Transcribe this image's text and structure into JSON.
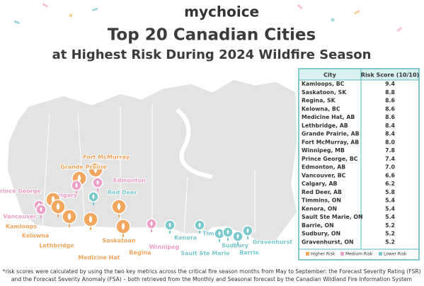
{
  "brand": {
    "my": "my",
    "choice": "choice"
  },
  "header": {
    "title": "Top 20 Canadian Cities",
    "subtitle": "at Highest Risk During 2024 Wildfire Season"
  },
  "table": {
    "columns": [
      "City",
      "Risk Score (10/10)"
    ],
    "rows": [
      [
        "Kamloops, BC",
        "9.4"
      ],
      [
        "Saskatoon, SK",
        "8.8"
      ],
      [
        "Regina, SK",
        "8.6"
      ],
      [
        "Kelowna, BC",
        "8.6"
      ],
      [
        "Medicine Hat, AB",
        "8.6"
      ],
      [
        "Lethbridge, AB",
        "8.4"
      ],
      [
        "Grande Prairie, AB",
        "8.4"
      ],
      [
        "Fort McMurray, AB",
        "8.0"
      ],
      [
        "Winnipeg, MB",
        "7.8"
      ],
      [
        "Prince George, BC",
        "7.4"
      ],
      [
        "Edmonton, AB",
        "7.0"
      ],
      [
        "Vancouver, BC",
        "6.6"
      ],
      [
        "Calgary, AB",
        "6.2"
      ],
      [
        "Red Deer, AB",
        "5.8"
      ],
      [
        "Timmins, ON",
        "5.4"
      ],
      [
        "Kenora, ON",
        "5.4"
      ],
      [
        "Sault Ste Marie, ON",
        "5.4"
      ],
      [
        "Barrie, ON",
        "5.2"
      ],
      [
        "Sudbury, ON",
        "5.2"
      ],
      [
        "Gravenhurst, ON",
        "5.2"
      ]
    ]
  },
  "legend": [
    {
      "label": "Higher Risk",
      "color": "#f2a65e"
    },
    {
      "label": "Medium Risk",
      "color": "#ec9fc8"
    },
    {
      "label": "Lower Risk",
      "color": "#79c9cc"
    }
  ],
  "map": {
    "labels": [
      {
        "text": "Fort McMurray",
        "color": "#f2a65e"
      },
      {
        "text": "Grande Prairie",
        "color": "#f2a65e"
      },
      {
        "text": "Edmonton",
        "color": "#ec9fc8"
      },
      {
        "text": "Red Deer",
        "color": "#79c9cc"
      },
      {
        "text": "Calgary",
        "color": "#ec9fc8"
      },
      {
        "text": "Prince George",
        "color": "#ec9fc8"
      },
      {
        "text": "Vancouver",
        "color": "#ec9fc8"
      },
      {
        "text": "Kamloops",
        "color": "#f2a65e"
      },
      {
        "text": "Kelowna",
        "color": "#f2a65e"
      },
      {
        "text": "Lethbridge",
        "color": "#f2a65e"
      },
      {
        "text": "Medicine Hat",
        "color": "#f2a65e"
      },
      {
        "text": "Saskatoon",
        "color": "#f2a65e"
      },
      {
        "text": "Regina",
        "color": "#f2a65e"
      },
      {
        "text": "Winnipeg",
        "color": "#ec9fc8"
      },
      {
        "text": "Kenora",
        "color": "#79c9cc"
      },
      {
        "text": "Timmins",
        "color": "#79c9cc"
      },
      {
        "text": "Sault Ste Marie",
        "color": "#79c9cc"
      },
      {
        "text": "Sudbury",
        "color": "#79c9cc"
      },
      {
        "text": "Barrie",
        "color": "#79c9cc"
      },
      {
        "text": "Gravenhurst",
        "color": "#79c9cc"
      }
    ]
  },
  "footnote": [
    "*risk scores were calculated by using the two key metrics across the critical fire season months from May to September: the Forecast Severity Rating (FSR)",
    "and the Forecast Severity Anomaly (FSA) – both retrieved from the Monthly and Seasonal forecast by the Canadian Wildland Fire Information System"
  ]
}
